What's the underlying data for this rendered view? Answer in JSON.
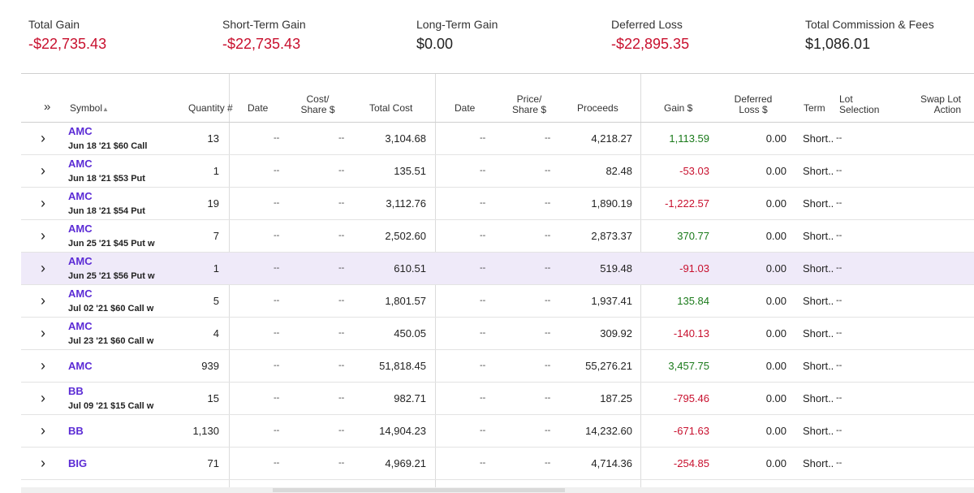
{
  "summary": {
    "total_gain": {
      "label": "Total Gain",
      "value": "-$22,735.43"
    },
    "short_term_gain": {
      "label": "Short-Term Gain",
      "value": "-$22,735.43"
    },
    "long_term_gain": {
      "label": "Long-Term Gain",
      "value": "$0.00"
    },
    "deferred_loss": {
      "label": "Deferred Loss",
      "value": "-$22,895.35"
    },
    "total_commission": {
      "label": "Total Commission & Fees",
      "value": "$1,086.01"
    }
  },
  "colors": {
    "negative": "#c8102e",
    "positive": "#1a7a1a",
    "symbol": "#5b2bd5",
    "highlight": "#efeaf9"
  },
  "header": {
    "expand_icon": "»",
    "symbol": "Symbol",
    "sort_icon": "▲",
    "quantity": "Quantity #",
    "acq_date": "Date",
    "cost_share_1": "Cost/",
    "cost_share_2": "Share $",
    "total_cost": "Total Cost",
    "sold_date": "Date",
    "price_share_1": "Price/",
    "price_share_2": "Share $",
    "proceeds": "Proceeds",
    "gain": "Gain $",
    "deferred_1": "Deferred",
    "deferred_2": "Loss $",
    "term": "Term",
    "lot_1": "Lot",
    "lot_2": "Selection",
    "swap_1": "Swap Lot",
    "swap_2": "Action"
  },
  "rows": [
    {
      "chev": "›",
      "symbol": "AMC",
      "desc": "Jun 18 '21 $60 Call",
      "qty": "13",
      "date": "--",
      "cost_share": "--",
      "total_cost": "3,104.68",
      "sdate": "--",
      "price_share": "--",
      "proceeds": "4,218.27",
      "gain": "1,113.59",
      "gain_sign": "pos",
      "deferred": "0.00",
      "term": "Short..",
      "lot": "--"
    },
    {
      "chev": "›",
      "symbol": "AMC",
      "desc": "Jun 18 '21 $53 Put",
      "qty": "1",
      "date": "--",
      "cost_share": "--",
      "total_cost": "135.51",
      "sdate": "--",
      "price_share": "--",
      "proceeds": "82.48",
      "gain": "-53.03",
      "gain_sign": "neg",
      "deferred": "0.00",
      "term": "Short..",
      "lot": "--"
    },
    {
      "chev": "›",
      "symbol": "AMC",
      "desc": "Jun 18 '21 $54 Put",
      "qty": "19",
      "date": "--",
      "cost_share": "--",
      "total_cost": "3,112.76",
      "sdate": "--",
      "price_share": "--",
      "proceeds": "1,890.19",
      "gain": "-1,222.57",
      "gain_sign": "neg",
      "deferred": "0.00",
      "term": "Short..",
      "lot": "--"
    },
    {
      "chev": "›",
      "symbol": "AMC",
      "desc": "Jun 25 '21 $45 Put w",
      "qty": "7",
      "date": "--",
      "cost_share": "--",
      "total_cost": "2,502.60",
      "sdate": "--",
      "price_share": "--",
      "proceeds": "2,873.37",
      "gain": "370.77",
      "gain_sign": "pos",
      "deferred": "0.00",
      "term": "Short..",
      "lot": "--"
    },
    {
      "chev": "›",
      "symbol": "AMC",
      "desc": "Jun 25 '21 $56 Put w",
      "qty": "1",
      "date": "--",
      "cost_share": "--",
      "total_cost": "610.51",
      "sdate": "--",
      "price_share": "--",
      "proceeds": "519.48",
      "gain": "-91.03",
      "gain_sign": "neg",
      "deferred": "0.00",
      "term": "Short..",
      "lot": "--"
    },
    {
      "chev": "›",
      "symbol": "AMC",
      "desc": "Jul 02 '21 $60 Call w",
      "qty": "5",
      "date": "--",
      "cost_share": "--",
      "total_cost": "1,801.57",
      "sdate": "--",
      "price_share": "--",
      "proceeds": "1,937.41",
      "gain": "135.84",
      "gain_sign": "pos",
      "deferred": "0.00",
      "term": "Short..",
      "lot": "--"
    },
    {
      "chev": "›",
      "symbol": "AMC",
      "desc": "Jul 23 '21 $60 Call w",
      "qty": "4",
      "date": "--",
      "cost_share": "--",
      "total_cost": "450.05",
      "sdate": "--",
      "price_share": "--",
      "proceeds": "309.92",
      "gain": "-140.13",
      "gain_sign": "neg",
      "deferred": "0.00",
      "term": "Short..",
      "lot": "--"
    },
    {
      "chev": "›",
      "symbol": "AMC",
      "desc": "",
      "qty": "939",
      "date": "--",
      "cost_share": "--",
      "total_cost": "51,818.45",
      "sdate": "--",
      "price_share": "--",
      "proceeds": "55,276.21",
      "gain": "3,457.75",
      "gain_sign": "pos",
      "deferred": "0.00",
      "term": "Short..",
      "lot": "--"
    },
    {
      "chev": "›",
      "symbol": "BB",
      "desc": "Jul 09 '21 $15 Call w",
      "qty": "15",
      "date": "--",
      "cost_share": "--",
      "total_cost": "982.71",
      "sdate": "--",
      "price_share": "--",
      "proceeds": "187.25",
      "gain": "-795.46",
      "gain_sign": "neg",
      "deferred": "0.00",
      "term": "Short..",
      "lot": "--"
    },
    {
      "chev": "›",
      "symbol": "BB",
      "desc": "",
      "qty": "1,130",
      "date": "--",
      "cost_share": "--",
      "total_cost": "14,904.23",
      "sdate": "--",
      "price_share": "--",
      "proceeds": "14,232.60",
      "gain": "-671.63",
      "gain_sign": "neg",
      "deferred": "0.00",
      "term": "Short..",
      "lot": "--"
    },
    {
      "chev": "›",
      "symbol": "BIG",
      "desc": "",
      "qty": "71",
      "date": "--",
      "cost_share": "--",
      "total_cost": "4,969.21",
      "sdate": "--",
      "price_share": "--",
      "proceeds": "4,714.36",
      "gain": "-254.85",
      "gain_sign": "neg",
      "deferred": "0.00",
      "term": "Short..",
      "lot": "--"
    }
  ],
  "highlighted_row": 4
}
